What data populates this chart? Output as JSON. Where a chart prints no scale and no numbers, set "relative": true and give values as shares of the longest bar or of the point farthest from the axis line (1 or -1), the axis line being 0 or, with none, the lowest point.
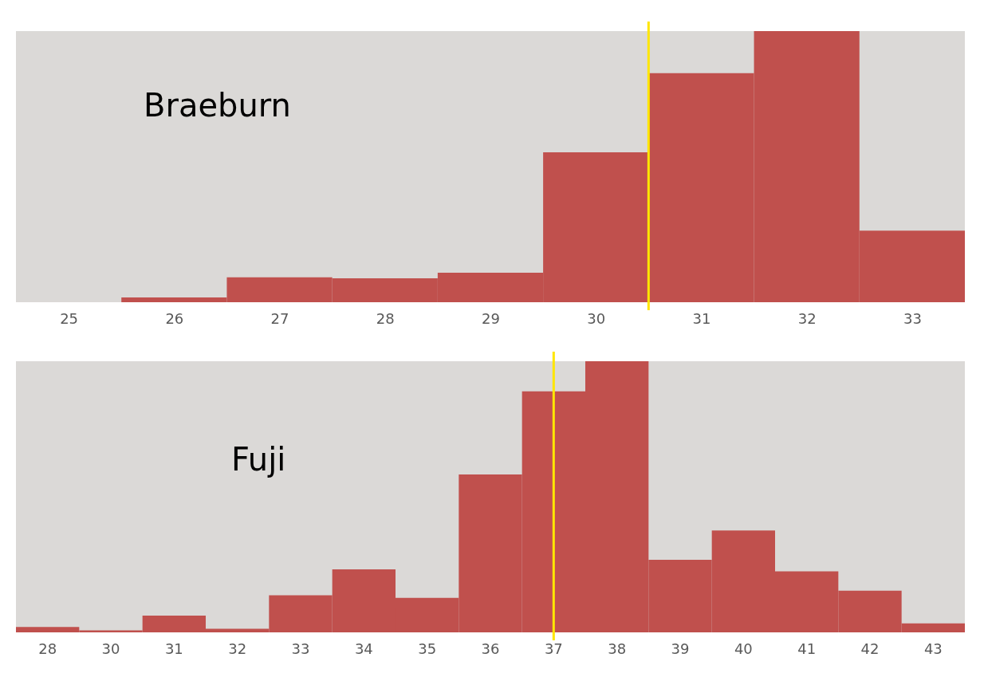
{
  "chart_data": [
    {
      "type": "bar",
      "title": "Braeburn",
      "relative": true,
      "color": "#c0504d",
      "grid": false,
      "tick_labels": "x",
      "x": [
        25,
        26,
        27,
        28,
        29,
        30,
        31,
        32,
        33
      ],
      "values": [
        0,
        0.018,
        0.092,
        0.088,
        0.109,
        0.553,
        0.845,
        1,
        0.264
      ],
      "xlim": [
        24.5,
        33.5
      ],
      "xticks": [
        25,
        26,
        27,
        28,
        29,
        30,
        31,
        32,
        33
      ],
      "ref_lines": [
        {
          "axis": "x",
          "value": 30.5,
          "color": "#ffe600"
        }
      ]
    },
    {
      "type": "bar",
      "title": "Fuji",
      "relative": true,
      "color": "#c0504d",
      "grid": false,
      "tick_labels": "x",
      "categories": [
        "28",
        "30",
        "31",
        "32",
        "33",
        "34",
        "35",
        "36",
        "37",
        "38",
        "39",
        "40",
        "41",
        "42",
        "43"
      ],
      "values": [
        0.02,
        0.007,
        0.062,
        0.013,
        0.137,
        0.232,
        0.127,
        0.582,
        0.889,
        1,
        0.268,
        0.376,
        0.225,
        0.154,
        0.033
      ],
      "ref_lines": [
        {
          "axis": "x",
          "value": "37",
          "color": "#ffe600"
        }
      ]
    }
  ]
}
